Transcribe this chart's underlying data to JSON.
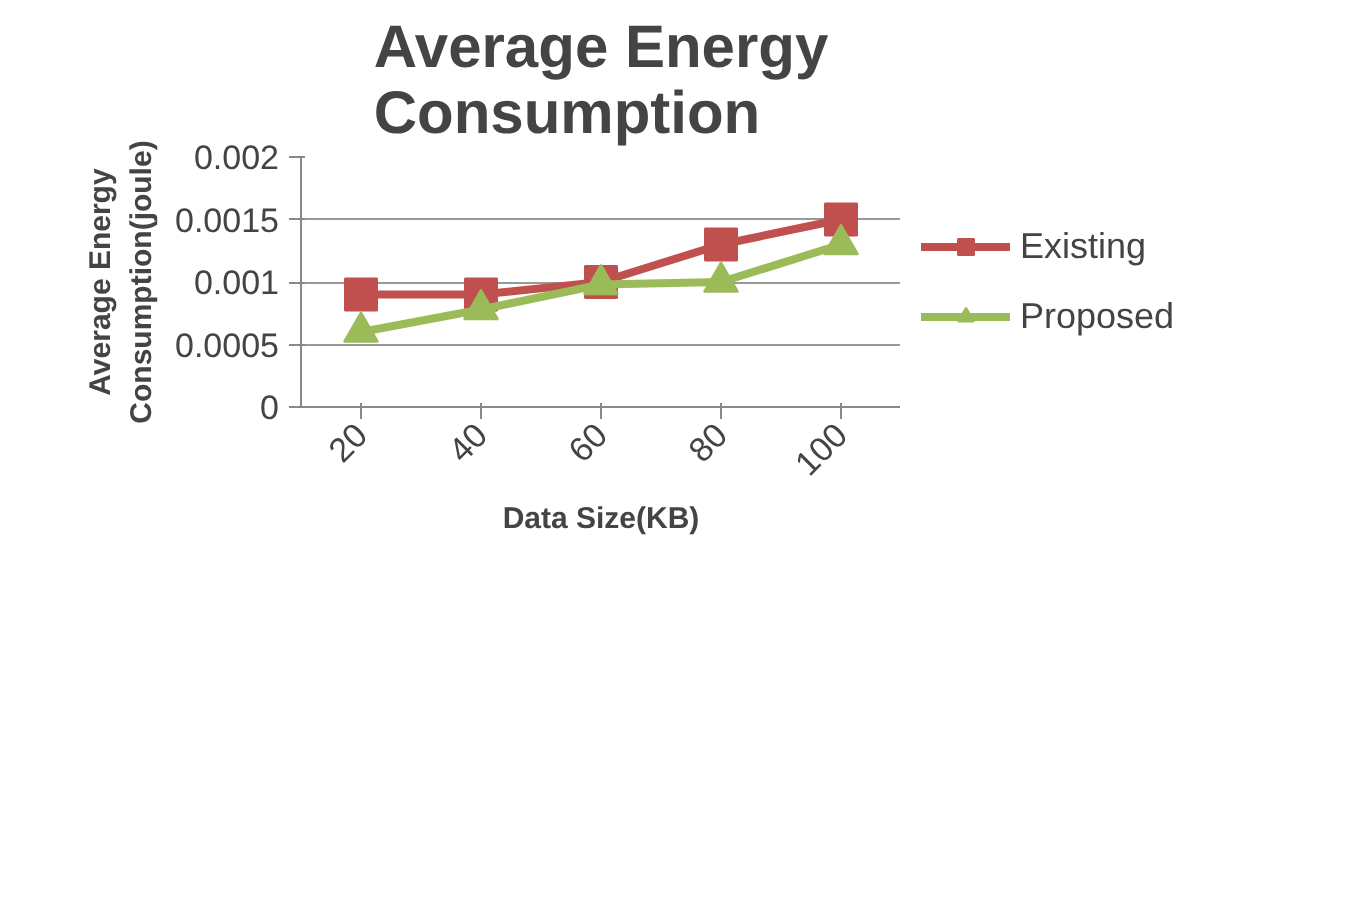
{
  "chart_data": {
    "type": "line",
    "title": "Average Energy\nConsumption",
    "xlabel": "Data Size(KB)",
    "ylabel": "Average Energy\nConsumption(joule)",
    "categories": [
      "20",
      "40",
      "60",
      "80",
      "100"
    ],
    "series": [
      {
        "name": "Existing",
        "color": "#c0504d",
        "marker": "square",
        "values": [
          0.0009,
          0.0009,
          0.001,
          0.0013,
          0.0015
        ]
      },
      {
        "name": "Proposed",
        "color": "#9bbb59",
        "marker": "triangle",
        "values": [
          0.0006,
          0.00078,
          0.00098,
          0.001,
          0.0013
        ]
      }
    ],
    "ylim": [
      0,
      0.002
    ],
    "yticks": [
      0,
      0.0005,
      0.001,
      0.0015,
      0.002
    ],
    "grid": "y",
    "legend": "right"
  }
}
